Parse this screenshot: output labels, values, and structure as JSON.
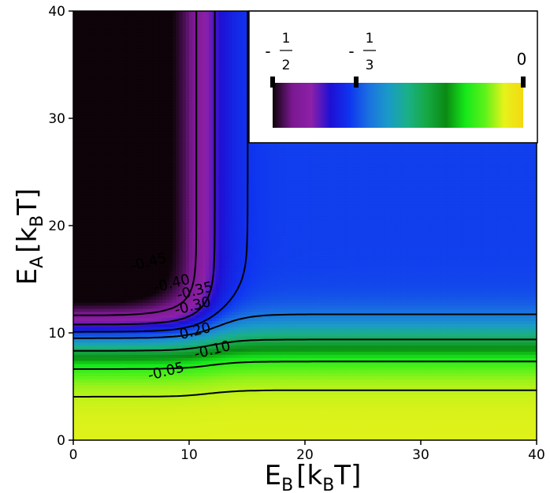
{
  "chart_data": {
    "type": "heatmap",
    "xlabel": {
      "main": "E",
      "sub": "B",
      "bracket_open": "[k",
      "bracket_sub": "B",
      "bracket_close": "T]"
    },
    "ylabel": {
      "main": "E",
      "sub": "A",
      "bracket_open": "[k",
      "bracket_sub": "B",
      "bracket_close": "T]"
    },
    "xlim": [
      0,
      40
    ],
    "ylim": [
      0,
      40
    ],
    "x_ticks": [
      0,
      10,
      20,
      30,
      40
    ],
    "y_ticks": [
      0,
      10,
      20,
      30,
      40
    ],
    "x_tick_labels": [
      "0",
      "10",
      "20",
      "30",
      "40"
    ],
    "y_tick_labels": [
      "0",
      "10",
      "20",
      "30",
      "40"
    ],
    "contour_levels": [
      -0.45,
      -0.4,
      -0.35,
      -0.3,
      -0.2,
      -0.1,
      -0.05
    ],
    "contour_labels": [
      {
        "text": "-0.45",
        "x": 6.6,
        "y": 16.2
      },
      {
        "text": "-0.40",
        "x": 8.6,
        "y": 14.2
      },
      {
        "text": "-0.35",
        "x": 10.6,
        "y": 13.5
      },
      {
        "text": "-0.30",
        "x": 10.4,
        "y": 12.1
      },
      {
        "text": "-0.20",
        "x": 10.4,
        "y": 9.7
      },
      {
        "text": "-0.10",
        "x": 12.1,
        "y": 8.0
      },
      {
        "text": "-0.05",
        "x": 8.1,
        "y": 6.0
      }
    ],
    "colorbar": {
      "range": [
        -0.5,
        0
      ],
      "ticks": [
        {
          "value": -0.5,
          "sign": "-",
          "numerator": "1",
          "denominator": "2"
        },
        {
          "value": -0.3333,
          "sign": "-",
          "numerator": "1",
          "denominator": "3"
        },
        {
          "value": 0,
          "label": "0"
        }
      ],
      "colors": [
        "#0d0308",
        "#7a1890",
        "#8d20a8",
        "#1e10d4",
        "#0f35f0",
        "#1a72e0",
        "#1a9ac8",
        "#1ab088",
        "#16a844",
        "#0a8a12",
        "#16e81a",
        "#5cf21a",
        "#e6f21a",
        "#f4d812"
      ]
    }
  }
}
